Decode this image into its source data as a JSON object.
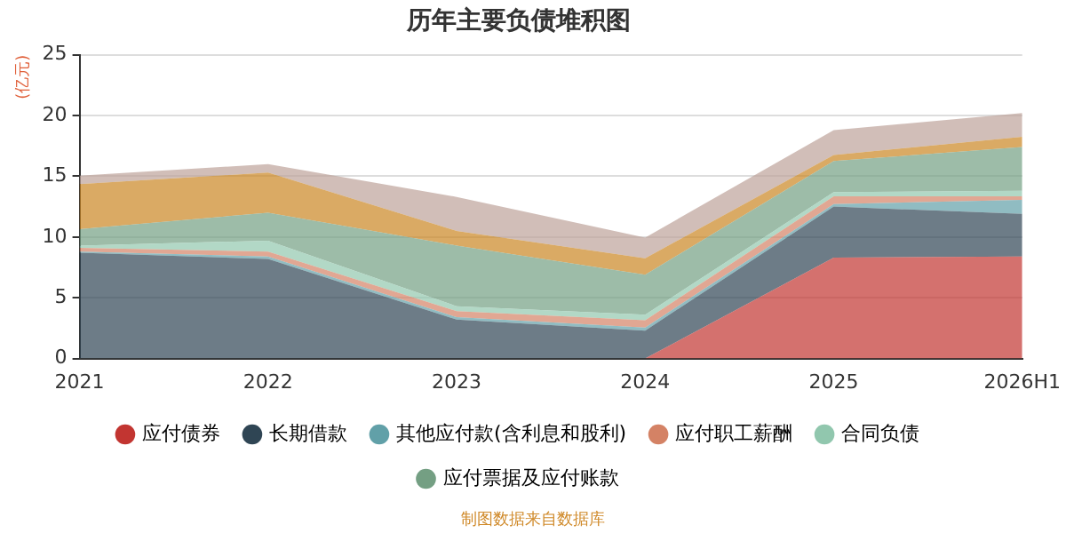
{
  "chart_data": {
    "type": "area",
    "title": "历年主要负债堆积图",
    "ylabel": "(亿元)",
    "stacked": true,
    "categories": [
      "2021",
      "2022",
      "2023",
      "2024",
      "2025",
      "2026H1"
    ],
    "series": [
      {
        "name": "应付债券",
        "color": "#c23531",
        "values": [
          0,
          0,
          0,
          0,
          8.3,
          8.4
        ]
      },
      {
        "name": "长期借款",
        "color": "#2f4554",
        "values": [
          8.7,
          8.2,
          3.2,
          2.3,
          4.2,
          3.5
        ]
      },
      {
        "name": "其他应付款(含利息和股利)",
        "color": "#61a0a8",
        "values": [
          0.1,
          0.2,
          0.2,
          0.25,
          0.2,
          1.15
        ]
      },
      {
        "name": "应付职工薪酬",
        "color": "#d48265",
        "values": [
          0.3,
          0.4,
          0.5,
          0.6,
          0.65,
          0.3
        ]
      },
      {
        "name": "合同负债",
        "color": "#91c7ae",
        "values": [
          0.2,
          0.9,
          0.4,
          0.45,
          0.35,
          0.45
        ]
      },
      {
        "name": "应付票据及应付账款",
        "color": "#749f83",
        "values": [
          1.35,
          2.3,
          5.0,
          3.3,
          2.55,
          3.6
        ]
      },
      {
        "color": "#ca8622",
        "values": [
          3.7,
          3.3,
          1.2,
          1.35,
          0.5,
          0.85
        ]
      },
      {
        "color": "#bda29a",
        "values": [
          0.7,
          0.7,
          2.8,
          1.7,
          2.05,
          1.95
        ]
      }
    ],
    "ylim": [
      0,
      25
    ],
    "yticks": [
      0,
      5,
      10,
      15,
      20,
      25
    ],
    "grid": "y",
    "legend": "bottom",
    "annotations": [
      "制图数据来自数据库"
    ]
  }
}
